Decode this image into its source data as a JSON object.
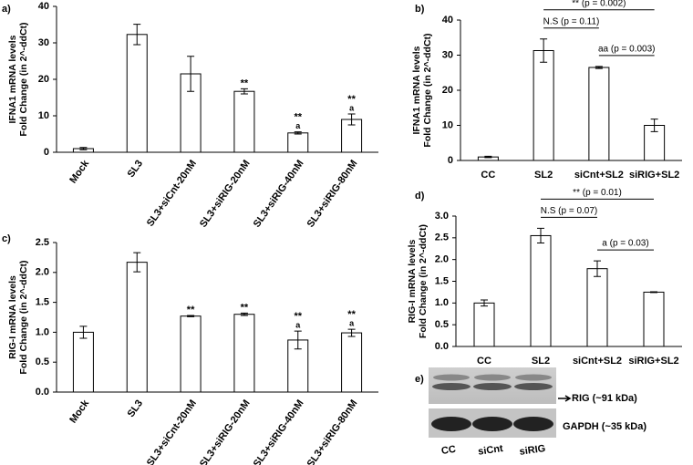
{
  "chart_data": [
    {
      "type": "bar",
      "label": "a)",
      "ylabel": [
        "IFNA1 mRNA levels",
        "Fold Change (in 2^-ddCt)"
      ],
      "categories": [
        "Mock",
        "SL3",
        "SL3+siCnt-20nM",
        "SL3+siRIG-20nM",
        "SL3+siRIG-40nM",
        "SL3+siRIG-80nM"
      ],
      "values": [
        1.0,
        32.3,
        21.5,
        16.7,
        5.3,
        9.0
      ],
      "errors": [
        0.3,
        2.8,
        4.8,
        0.7,
        0.3,
        1.5
      ],
      "sig": [
        null,
        null,
        null,
        "**",
        "**",
        "**"
      ],
      "sig2": [
        null,
        null,
        null,
        null,
        "a",
        "a"
      ],
      "color": "#ffffff",
      "xtick_rotation": -55,
      "ylim": [
        0,
        40
      ],
      "yticks": [
        0,
        10,
        20,
        30,
        40
      ]
    },
    {
      "type": "bar",
      "label": "b)",
      "ylabel": [
        "IFNA1 mRNA levels",
        "Fold Change (in 2^-ddCt)"
      ],
      "categories": [
        "CC",
        "SL2",
        "siCnt+SL2",
        "siRIG+SL2"
      ],
      "values": [
        1.0,
        31.3,
        26.5,
        10.0
      ],
      "errors": [
        0.2,
        3.3,
        0.3,
        1.8
      ],
      "brackets": [
        {
          "from": "SL2",
          "to": "siRIG+SL2",
          "label": "** (p = 0.002)"
        },
        {
          "from": "SL2",
          "to": "siCnt+SL2",
          "label": "N.S (p = 0.11)"
        },
        {
          "from": "siCnt+SL2",
          "to": "siRIG+SL2",
          "label": "aa (p = 0.003)"
        }
      ],
      "color": "#ffffff",
      "xtick_rotation": 0,
      "ylim": [
        0,
        40
      ],
      "yticks": [
        0,
        10,
        20,
        30,
        40
      ]
    },
    {
      "type": "bar",
      "label": "c)",
      "ylabel": [
        "RIG-I mRNA levels",
        "Fold Change (in 2^-ddCt)"
      ],
      "categories": [
        "Mock",
        "SL3",
        "SL3+siCnt-20nM",
        "SL3+siRIG-20nM",
        "SL3+siRIG-40nM",
        "SL3+siRIG-80nM"
      ],
      "values": [
        1.0,
        2.17,
        1.27,
        1.3,
        0.87,
        0.99
      ],
      "errors": [
        0.1,
        0.16,
        0.01,
        0.02,
        0.15,
        0.06
      ],
      "sig": [
        null,
        null,
        "**",
        "**",
        "**",
        "**"
      ],
      "sig2": [
        null,
        null,
        null,
        null,
        "a",
        "a"
      ],
      "color": "#ffffff",
      "xtick_rotation": -55,
      "ylim": [
        0,
        2.5
      ],
      "yticks": [
        {
          "value": 0,
          "label": "0.0"
        },
        0.5,
        {
          "value": 1,
          "label": "1.0"
        },
        1.5,
        {
          "value": 2,
          "label": "2.0"
        },
        2.5
      ]
    },
    {
      "type": "bar",
      "label": "d)",
      "ylabel": [
        "RIG-I mRNA levels",
        "Fold Change (in 2^-ddCt)"
      ],
      "categories": [
        "CC",
        "SL2",
        "siCnt+SL2",
        "siRIG+SL2"
      ],
      "values": [
        1.0,
        2.55,
        1.79,
        1.25
      ],
      "errors": [
        0.07,
        0.17,
        0.18,
        0.01
      ],
      "brackets": [
        {
          "from": "SL2",
          "to": "siRIG+SL2",
          "label": "** (p = 0.01)"
        },
        {
          "from": "SL2",
          "to": "siCnt+SL2",
          "label": "N.S (p = 0.07)"
        },
        {
          "from": "siCnt+SL2",
          "to": "siRIG+SL2",
          "label": "a (p = 0.03)"
        }
      ],
      "color": "#ffffff",
      "xtick_rotation": 0,
      "ylim": [
        0,
        3
      ],
      "yticks": [
        {
          "value": 0,
          "label": "0.0"
        },
        0.5,
        {
          "value": 1,
          "label": "1.0"
        },
        1.5,
        {
          "value": 2,
          "label": "2.0"
        },
        2.5,
        {
          "value": 3,
          "label": "3.0"
        }
      ]
    }
  ],
  "blot": {
    "label": "e)",
    "bands": [
      "RIG (~91 kDa)",
      "GAPDH (~35 kDa)"
    ],
    "lanes": [
      "CC",
      "siCnt",
      "siRIG"
    ]
  }
}
